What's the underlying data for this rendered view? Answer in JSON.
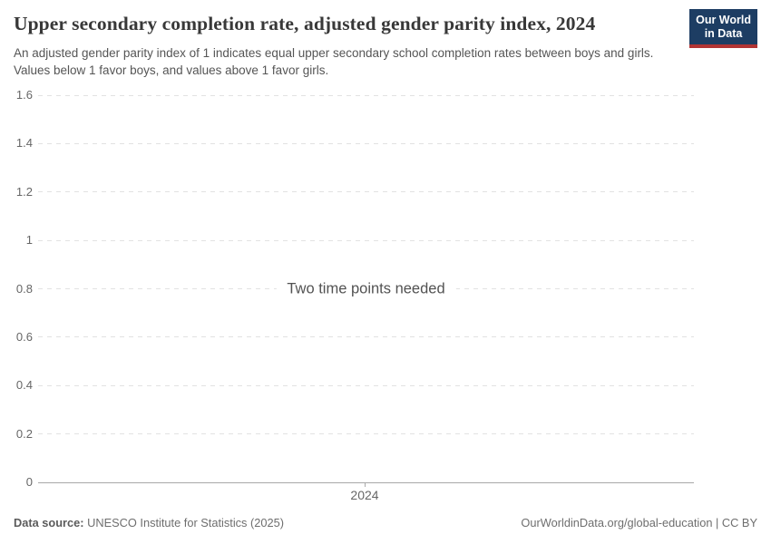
{
  "header": {
    "title": "Upper secondary completion rate, adjusted gender parity index, 2024",
    "subtitle": "An adjusted gender parity index of 1 indicates equal upper secondary school completion rates between boys and girls. Values below 1 favor boys, and values above 1 favor girls.",
    "logo": {
      "line1": "Our World",
      "line2": "in Data",
      "bg_color": "#1d3d63",
      "accent_color": "#b13434"
    }
  },
  "chart_data": {
    "type": "line",
    "title": "Upper secondary completion rate, adjusted gender parity index, 2024",
    "series": [],
    "x": [],
    "xticks": [
      "2024"
    ],
    "yticks": [
      "1.6",
      "1.4",
      "1.2",
      "1",
      "0.8",
      "0.6",
      "0.4",
      "0.2",
      "0"
    ],
    "ylim": [
      0,
      1.6
    ],
    "grid": "horizontal-dashed",
    "legend_position": "none",
    "empty_state_message": "Two time points needed"
  },
  "footer": {
    "datasource_label": "Data source:",
    "datasource_value": "UNESCO Institute for Statistics (2025)",
    "link": "OurWorldinData.org/global-education | CC BY"
  }
}
